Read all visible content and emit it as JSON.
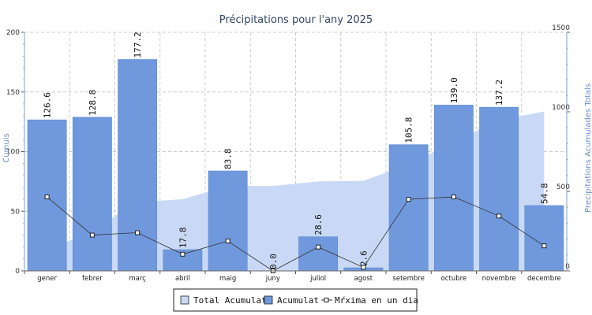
{
  "chart_data": {
    "type": "bar",
    "title": "Précipitations pour l'any 2025",
    "ylabel_left": "Cumuls",
    "ylabel_right": "Precipitations Acumulades Totals",
    "ylim_left": [
      0,
      200
    ],
    "ylim_right": [
      0,
      1500
    ],
    "yticks_left": [
      "0",
      "50",
      "100",
      "150",
      "200"
    ],
    "yticks_right": [
      "0",
      "500",
      "1000",
      "1500"
    ],
    "grid": true,
    "legend_position": "bottom",
    "categories": [
      "gener",
      "febrer",
      "març",
      "abril",
      "maig",
      "juny",
      "juliol",
      "agost",
      "setembre",
      "octubre",
      "novembre",
      "decembre"
    ],
    "series": [
      {
        "name": "Total Acumulat",
        "type": "area",
        "axis": "right",
        "color": "#c9d9f5",
        "values": [
          126.6,
          255.4,
          432.6,
          450.4,
          534.2,
          534.2,
          562.8,
          565.4,
          671.2,
          810.2,
          947.4,
          1002.2
        ]
      },
      {
        "name": "Acumulat",
        "type": "bar",
        "axis": "left",
        "color": "#7099dd",
        "values": [
          126.6,
          128.8,
          177.2,
          17.8,
          83.8,
          0.0,
          28.6,
          2.6,
          105.8,
          139.0,
          137.2,
          54.8
        ],
        "labels": [
          "126.6",
          "128.8",
          "177.2",
          "17.8",
          "83.8",
          "0.0",
          "28.6",
          "2.6",
          "105.8",
          "139.0",
          "137.2",
          "54.8"
        ]
      },
      {
        "name": "Màxima en un dia",
        "display_name": "Mŕxima en un dia",
        "type": "line",
        "axis": "left",
        "color": "#333333",
        "values": [
          62,
          30,
          32,
          14,
          25,
          0,
          20,
          3,
          60,
          62,
          46,
          21
        ]
      }
    ]
  }
}
